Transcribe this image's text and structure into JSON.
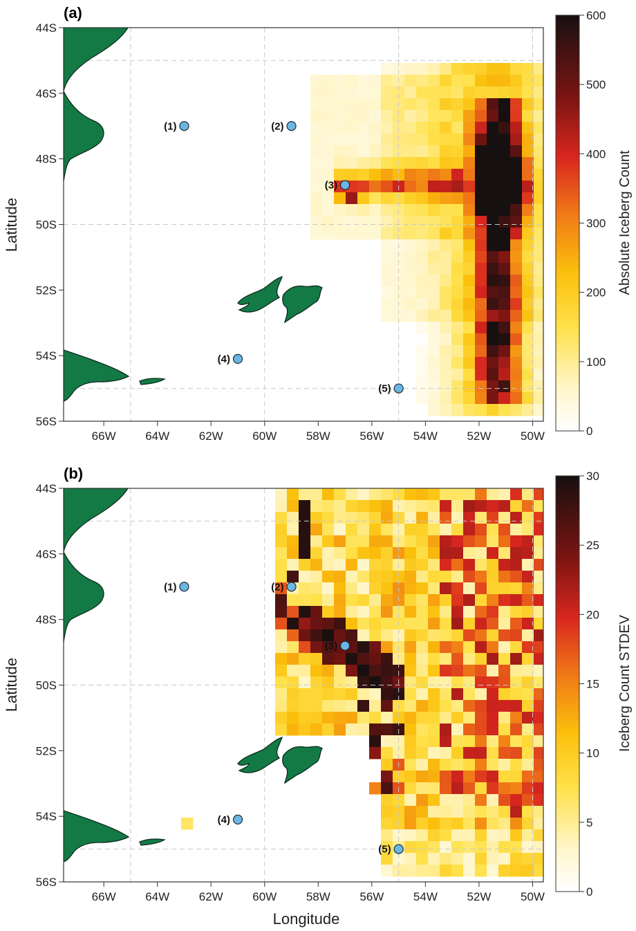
{
  "figure": {
    "xlabel": "Longitude",
    "colors": {
      "land": "#137a45",
      "land_edge": "#0d2b1c",
      "site_marker": "#6bb6e3",
      "grid": "#c8c8c8",
      "frame": "#333333"
    },
    "panels": [
      {
        "label": "(a)",
        "colorbar_label": "Absolute Iceberg Count",
        "colorbar_ticks": [
          "0",
          "100",
          "200",
          "300",
          "400",
          "500",
          "600"
        ]
      },
      {
        "label": "(b)",
        "colorbar_label": "Iceberg Count STDEV",
        "colorbar_ticks": [
          "0",
          "5",
          "10",
          "15",
          "20",
          "25",
          "30"
        ]
      }
    ]
  },
  "chart_data": [
    {
      "type": "heatmap",
      "title": "(a)",
      "xlabel": "",
      "ylabel": "Latitude",
      "x_ticks": [
        "66W",
        "64W",
        "62W",
        "60W",
        "58W",
        "56W",
        "54W",
        "52W",
        "50W"
      ],
      "y_ticks": [
        "44S",
        "46S",
        "48S",
        "50S",
        "52S",
        "54S",
        "56S"
      ],
      "xlim": [
        -67.5,
        -49.6
      ],
      "ylim": [
        -56,
        -44
      ],
      "colorbar": {
        "label": "Absolute Iceberg Count",
        "range": [
          0,
          600
        ],
        "ticks": [
          0,
          100,
          200,
          300,
          400,
          500,
          600
        ]
      },
      "grid": "dashed at 65W, 60W, 55W, 50W and 45S, 50S, 55S",
      "sites": [
        {
          "label": "(1)",
          "lon": -63,
          "lat": -47
        },
        {
          "label": "(2)",
          "lon": -59,
          "lat": -47
        },
        {
          "label": "(3)",
          "lon": -57,
          "lat": -48.8
        },
        {
          "label": "(4)",
          "lon": -61,
          "lat": -54.1
        },
        {
          "label": "(5)",
          "lon": -55,
          "lat": -55
        }
      ],
      "features": [
        {
          "desc": "peak count",
          "lon": -51.2,
          "lat": -48.7,
          "value": 600
        },
        {
          "desc": "band along 51W",
          "lon_range": [
            -52.2,
            -50.5
          ],
          "lat_range": [
            -55.3,
            -46.3
          ],
          "value": 400
        },
        {
          "desc": "tongue toward site 3",
          "lon_range": [
            -57.2,
            -52.5
          ],
          "lat_range": [
            -49.5,
            -48.2
          ],
          "value": 280
        }
      ]
    },
    {
      "type": "heatmap",
      "title": "(b)",
      "xlabel": "Longitude",
      "ylabel": "Latitude",
      "x_ticks": [
        "66W",
        "64W",
        "62W",
        "60W",
        "58W",
        "56W",
        "54W",
        "52W",
        "50W"
      ],
      "y_ticks": [
        "44S",
        "46S",
        "48S",
        "50S",
        "52S",
        "54S",
        "56S"
      ],
      "xlim": [
        -67.5,
        -49.6
      ],
      "ylim": [
        -56,
        -44
      ],
      "colorbar": {
        "label": "Iceberg Count STDEV",
        "range": [
          0,
          30
        ],
        "ticks": [
          0,
          5,
          10,
          15,
          20,
          25,
          30
        ]
      },
      "grid": "dashed at 65W, 60W, 55W, 50W and 45S, 50S, 55S",
      "sites": [
        {
          "label": "(1)",
          "lon": -63,
          "lat": -47
        },
        {
          "label": "(2)",
          "lon": -59,
          "lat": -47
        },
        {
          "label": "(3)",
          "lon": -57,
          "lat": -48.8
        },
        {
          "label": "(4)",
          "lon": -61,
          "lat": -54.1
        },
        {
          "label": "(5)",
          "lon": -55,
          "lat": -55
        }
      ],
      "features": [
        {
          "desc": "high variability column",
          "lon": -58.5,
          "lat": -45.3,
          "value": 30
        },
        {
          "desc": "high variability diagonal band",
          "lon_range": [
            -59.3,
            -54.7
          ],
          "lat_range": [
            -50.3,
            -47.8
          ],
          "value": 30
        },
        {
          "desc": "moderate field east of 56W",
          "lon_range": [
            -55.5,
            -49.6
          ],
          "lat_range": [
            -55.8,
            -44.2
          ],
          "value": 15
        }
      ]
    }
  ]
}
